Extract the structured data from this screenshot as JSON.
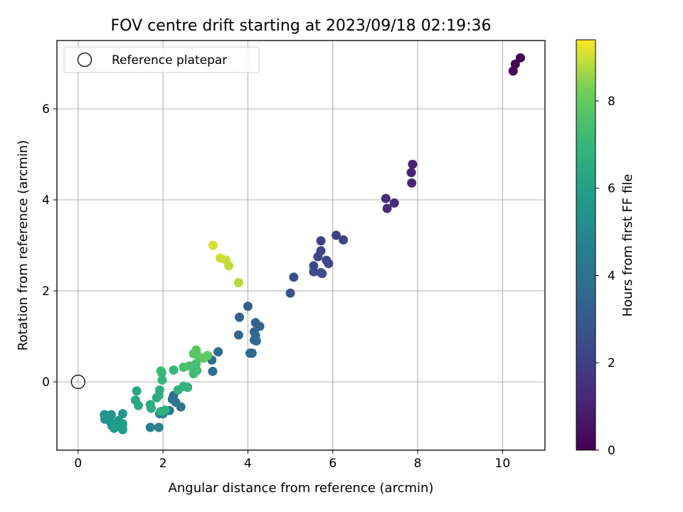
{
  "chart_data": {
    "type": "scatter",
    "title": "FOV centre drift starting at 2023/09/18 02:19:36",
    "xlabel": "Angular distance from reference (arcmin)",
    "ylabel": "Rotation from reference (arcmin)",
    "xlim": [
      -0.5,
      11
    ],
    "ylim": [
      -1.5,
      7.5
    ],
    "xticks": [
      0,
      2,
      4,
      6,
      8,
      10
    ],
    "yticks": [
      0,
      2,
      4,
      6
    ],
    "grid": true,
    "legend": {
      "placement": "top-left",
      "entries": [
        "Reference platepar"
      ]
    },
    "reference_point": {
      "x": 0,
      "y": 0
    },
    "colorbar": {
      "label": "Hours from first FF file",
      "range": [
        0,
        9.4
      ],
      "ticks": [
        0,
        2,
        4,
        6,
        8
      ],
      "colormap": "viridis"
    },
    "series": [
      {
        "points": [
          [
            10.42,
            7.12,
            0.05
          ],
          [
            10.3,
            6.98,
            0.1
          ],
          [
            10.25,
            6.83,
            0.15
          ],
          [
            7.88,
            4.78,
            1.0
          ],
          [
            7.85,
            4.6,
            1.05
          ],
          [
            7.86,
            4.37,
            1.1
          ],
          [
            7.25,
            4.03,
            1.3
          ],
          [
            7.45,
            3.93,
            1.35
          ],
          [
            7.28,
            3.81,
            1.4
          ],
          [
            6.08,
            3.22,
            2.0
          ],
          [
            6.25,
            3.12,
            2.05
          ],
          [
            5.72,
            3.1,
            2.1
          ],
          [
            5.72,
            2.88,
            2.15
          ],
          [
            5.65,
            2.75,
            2.2
          ],
          [
            5.85,
            2.67,
            2.25
          ],
          [
            5.9,
            2.6,
            2.3
          ],
          [
            5.55,
            2.55,
            2.35
          ],
          [
            5.55,
            2.42,
            2.4
          ],
          [
            5.72,
            2.4,
            2.45
          ],
          [
            5.75,
            2.38,
            2.5
          ],
          [
            5.08,
            2.3,
            2.6
          ],
          [
            5.0,
            1.95,
            2.7
          ],
          [
            4.0,
            1.66,
            3.2
          ],
          [
            3.8,
            1.42,
            3.25
          ],
          [
            4.18,
            1.3,
            3.3
          ],
          [
            4.28,
            1.22,
            3.35
          ],
          [
            4.15,
            1.1,
            3.4
          ],
          [
            4.18,
            1.02,
            3.45
          ],
          [
            3.78,
            1.03,
            3.5
          ],
          [
            4.15,
            0.92,
            3.55
          ],
          [
            4.2,
            0.9,
            3.6
          ],
          [
            4.05,
            0.63,
            3.65
          ],
          [
            4.1,
            0.63,
            3.7
          ],
          [
            3.3,
            0.66,
            3.75
          ],
          [
            3.15,
            0.48,
            3.8
          ],
          [
            3.17,
            0.23,
            3.85
          ],
          [
            2.25,
            -0.3,
            4.0
          ],
          [
            2.22,
            -0.38,
            4.05
          ],
          [
            2.3,
            -0.45,
            4.1
          ],
          [
            2.42,
            -0.55,
            4.15
          ],
          [
            2.15,
            -0.63,
            4.2
          ],
          [
            1.7,
            -1.0,
            4.6
          ],
          [
            1.9,
            -1.0,
            4.65
          ],
          [
            2.0,
            -0.7,
            4.7
          ],
          [
            1.92,
            -0.7,
            4.75
          ],
          [
            0.62,
            -0.72,
            5.4
          ],
          [
            0.78,
            -0.72,
            5.45
          ],
          [
            1.05,
            -0.7,
            5.5
          ],
          [
            0.63,
            -0.82,
            5.55
          ],
          [
            0.75,
            -0.87,
            5.6
          ],
          [
            0.95,
            -0.85,
            5.65
          ],
          [
            1.05,
            -0.92,
            5.7
          ],
          [
            0.8,
            -0.97,
            5.75
          ],
          [
            0.95,
            -0.95,
            5.8
          ],
          [
            1.05,
            -1.05,
            5.85
          ],
          [
            0.85,
            -1.02,
            5.9
          ],
          [
            1.38,
            -0.2,
            6.3
          ],
          [
            1.35,
            -0.4,
            6.35
          ],
          [
            1.42,
            -0.52,
            6.4
          ],
          [
            1.7,
            -0.5,
            6.45
          ],
          [
            1.72,
            -0.58,
            6.5
          ],
          [
            1.9,
            -0.3,
            6.55
          ],
          [
            1.92,
            -0.18,
            6.6
          ],
          [
            1.85,
            -0.35,
            6.65
          ],
          [
            1.95,
            -0.65,
            6.7
          ],
          [
            2.05,
            -0.62,
            6.75
          ],
          [
            2.35,
            -0.18,
            6.8
          ],
          [
            2.48,
            -0.1,
            6.85
          ],
          [
            2.58,
            -0.12,
            6.9
          ],
          [
            1.97,
            0.2,
            7.0
          ],
          [
            1.98,
            0.04,
            7.05
          ],
          [
            2.25,
            0.26,
            7.1
          ],
          [
            1.95,
            0.24,
            7.15
          ],
          [
            2.72,
            0.18,
            7.3
          ],
          [
            2.8,
            0.25,
            7.35
          ],
          [
            2.78,
            0.4,
            7.4
          ],
          [
            2.62,
            0.35,
            7.45
          ],
          [
            2.48,
            0.32,
            7.5
          ],
          [
            2.72,
            0.62,
            7.7
          ],
          [
            2.78,
            0.7,
            7.75
          ],
          [
            2.85,
            0.55,
            7.8
          ],
          [
            2.95,
            0.52,
            7.85
          ],
          [
            3.05,
            0.58,
            7.9
          ],
          [
            3.78,
            2.18,
            8.8
          ],
          [
            3.55,
            2.55,
            8.9
          ],
          [
            3.48,
            2.68,
            8.95
          ],
          [
            3.35,
            2.72,
            9.0
          ],
          [
            3.18,
            3.0,
            9.05
          ]
        ]
      }
    ]
  }
}
